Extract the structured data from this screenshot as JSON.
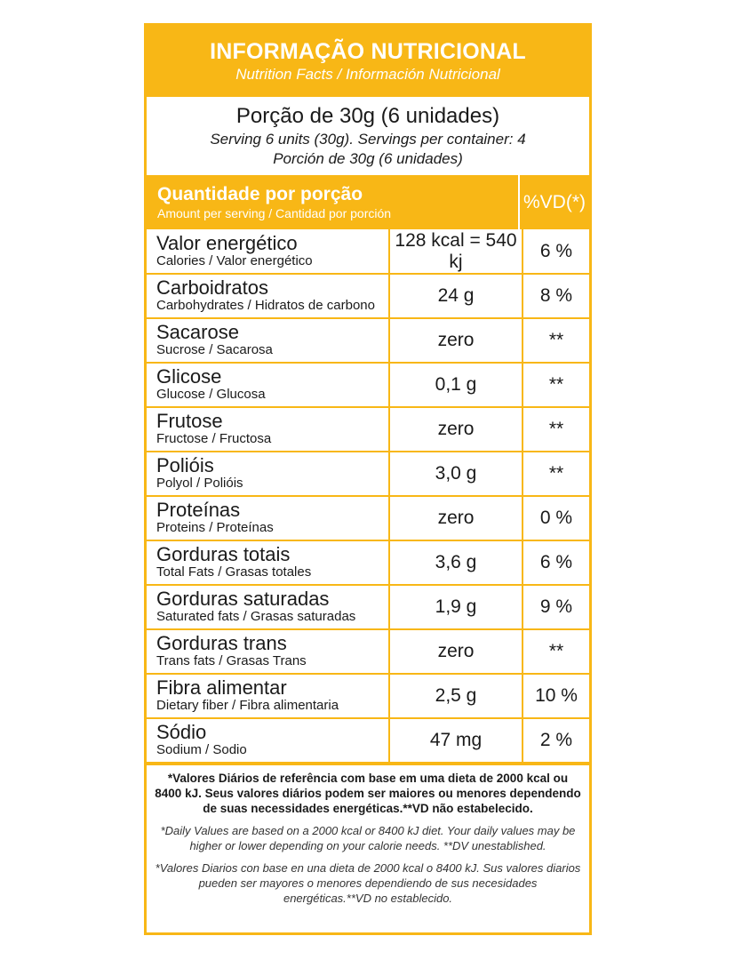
{
  "header": {
    "title": "INFORMAÇÃO NUTRICIONAL",
    "subtitle": "Nutrition Facts / Información Nutricional"
  },
  "serving": {
    "line1": "Porção de 30g (6 unidades)",
    "line2": "Serving 6 units (30g). Servings per container: 4",
    "line3": "Porción de 30g (6 unidades)"
  },
  "table_header": {
    "title": "Quantidade por porção",
    "subtitle": "Amount per serving / Cantidad por porción",
    "dv_label": "%VD(*)"
  },
  "rows": [
    {
      "name": "Valor energético",
      "translation": "Calories / Valor energético",
      "amount": "128 kcal = 540 kj",
      "dv": "6 %"
    },
    {
      "name": "Carboidratos",
      "translation": "Carbohydrates / Hidratos de carbono",
      "amount": "24 g",
      "dv": "8 %"
    },
    {
      "name": "Sacarose",
      "translation": "Sucrose / Sacarosa",
      "amount": "zero",
      "dv": "**"
    },
    {
      "name": "Glicose",
      "translation": "Glucose / Glucosa",
      "amount": "0,1 g",
      "dv": "**"
    },
    {
      "name": "Frutose",
      "translation": "Fructose / Fructosa",
      "amount": "zero",
      "dv": "**"
    },
    {
      "name": "Polióis",
      "translation": "Polyol / Polióis",
      "amount": "3,0 g",
      "dv": "**"
    },
    {
      "name": "Proteínas",
      "translation": "Proteins / Proteínas",
      "amount": "zero",
      "dv": "0 %"
    },
    {
      "name": "Gorduras totais",
      "translation": "Total Fats / Grasas totales",
      "amount": "3,6 g",
      "dv": "6 %"
    },
    {
      "name": "Gorduras saturadas",
      "translation": "Saturated fats / Grasas saturadas",
      "amount": "1,9 g",
      "dv": "9 %"
    },
    {
      "name": "Gorduras trans",
      "translation": "Trans fats / Grasas Trans",
      "amount": "zero",
      "dv": "**"
    },
    {
      "name": "Fibra alimentar",
      "translation": "Dietary fiber / Fibra alimentaria",
      "amount": "2,5 g",
      "dv": "10 %"
    },
    {
      "name": "Sódio",
      "translation": "Sodium / Sodio",
      "amount": "47 mg",
      "dv": "2 %"
    }
  ],
  "footnotes": {
    "pt": "*Valores Diários de referência com base em uma dieta de 2000 kcal ou 8400 kJ. Seus valores diários podem ser maiores ou menores dependendo de suas necessidades energéticas.**VD não estabelecido.",
    "en": "*Daily Values are based on a 2000 kcal or 8400 kJ diet. Your daily values may be higher or lower depending on your calorie needs. **DV unestablished.",
    "es": "*Valores Diarios con base en una dieta de 2000 kcal o 8400 kJ. Sus valores diarios pueden ser mayores o menores dependiendo de sus necesidades energéticas.**VD no establecido."
  },
  "colors": {
    "accent": "#f8b716"
  }
}
